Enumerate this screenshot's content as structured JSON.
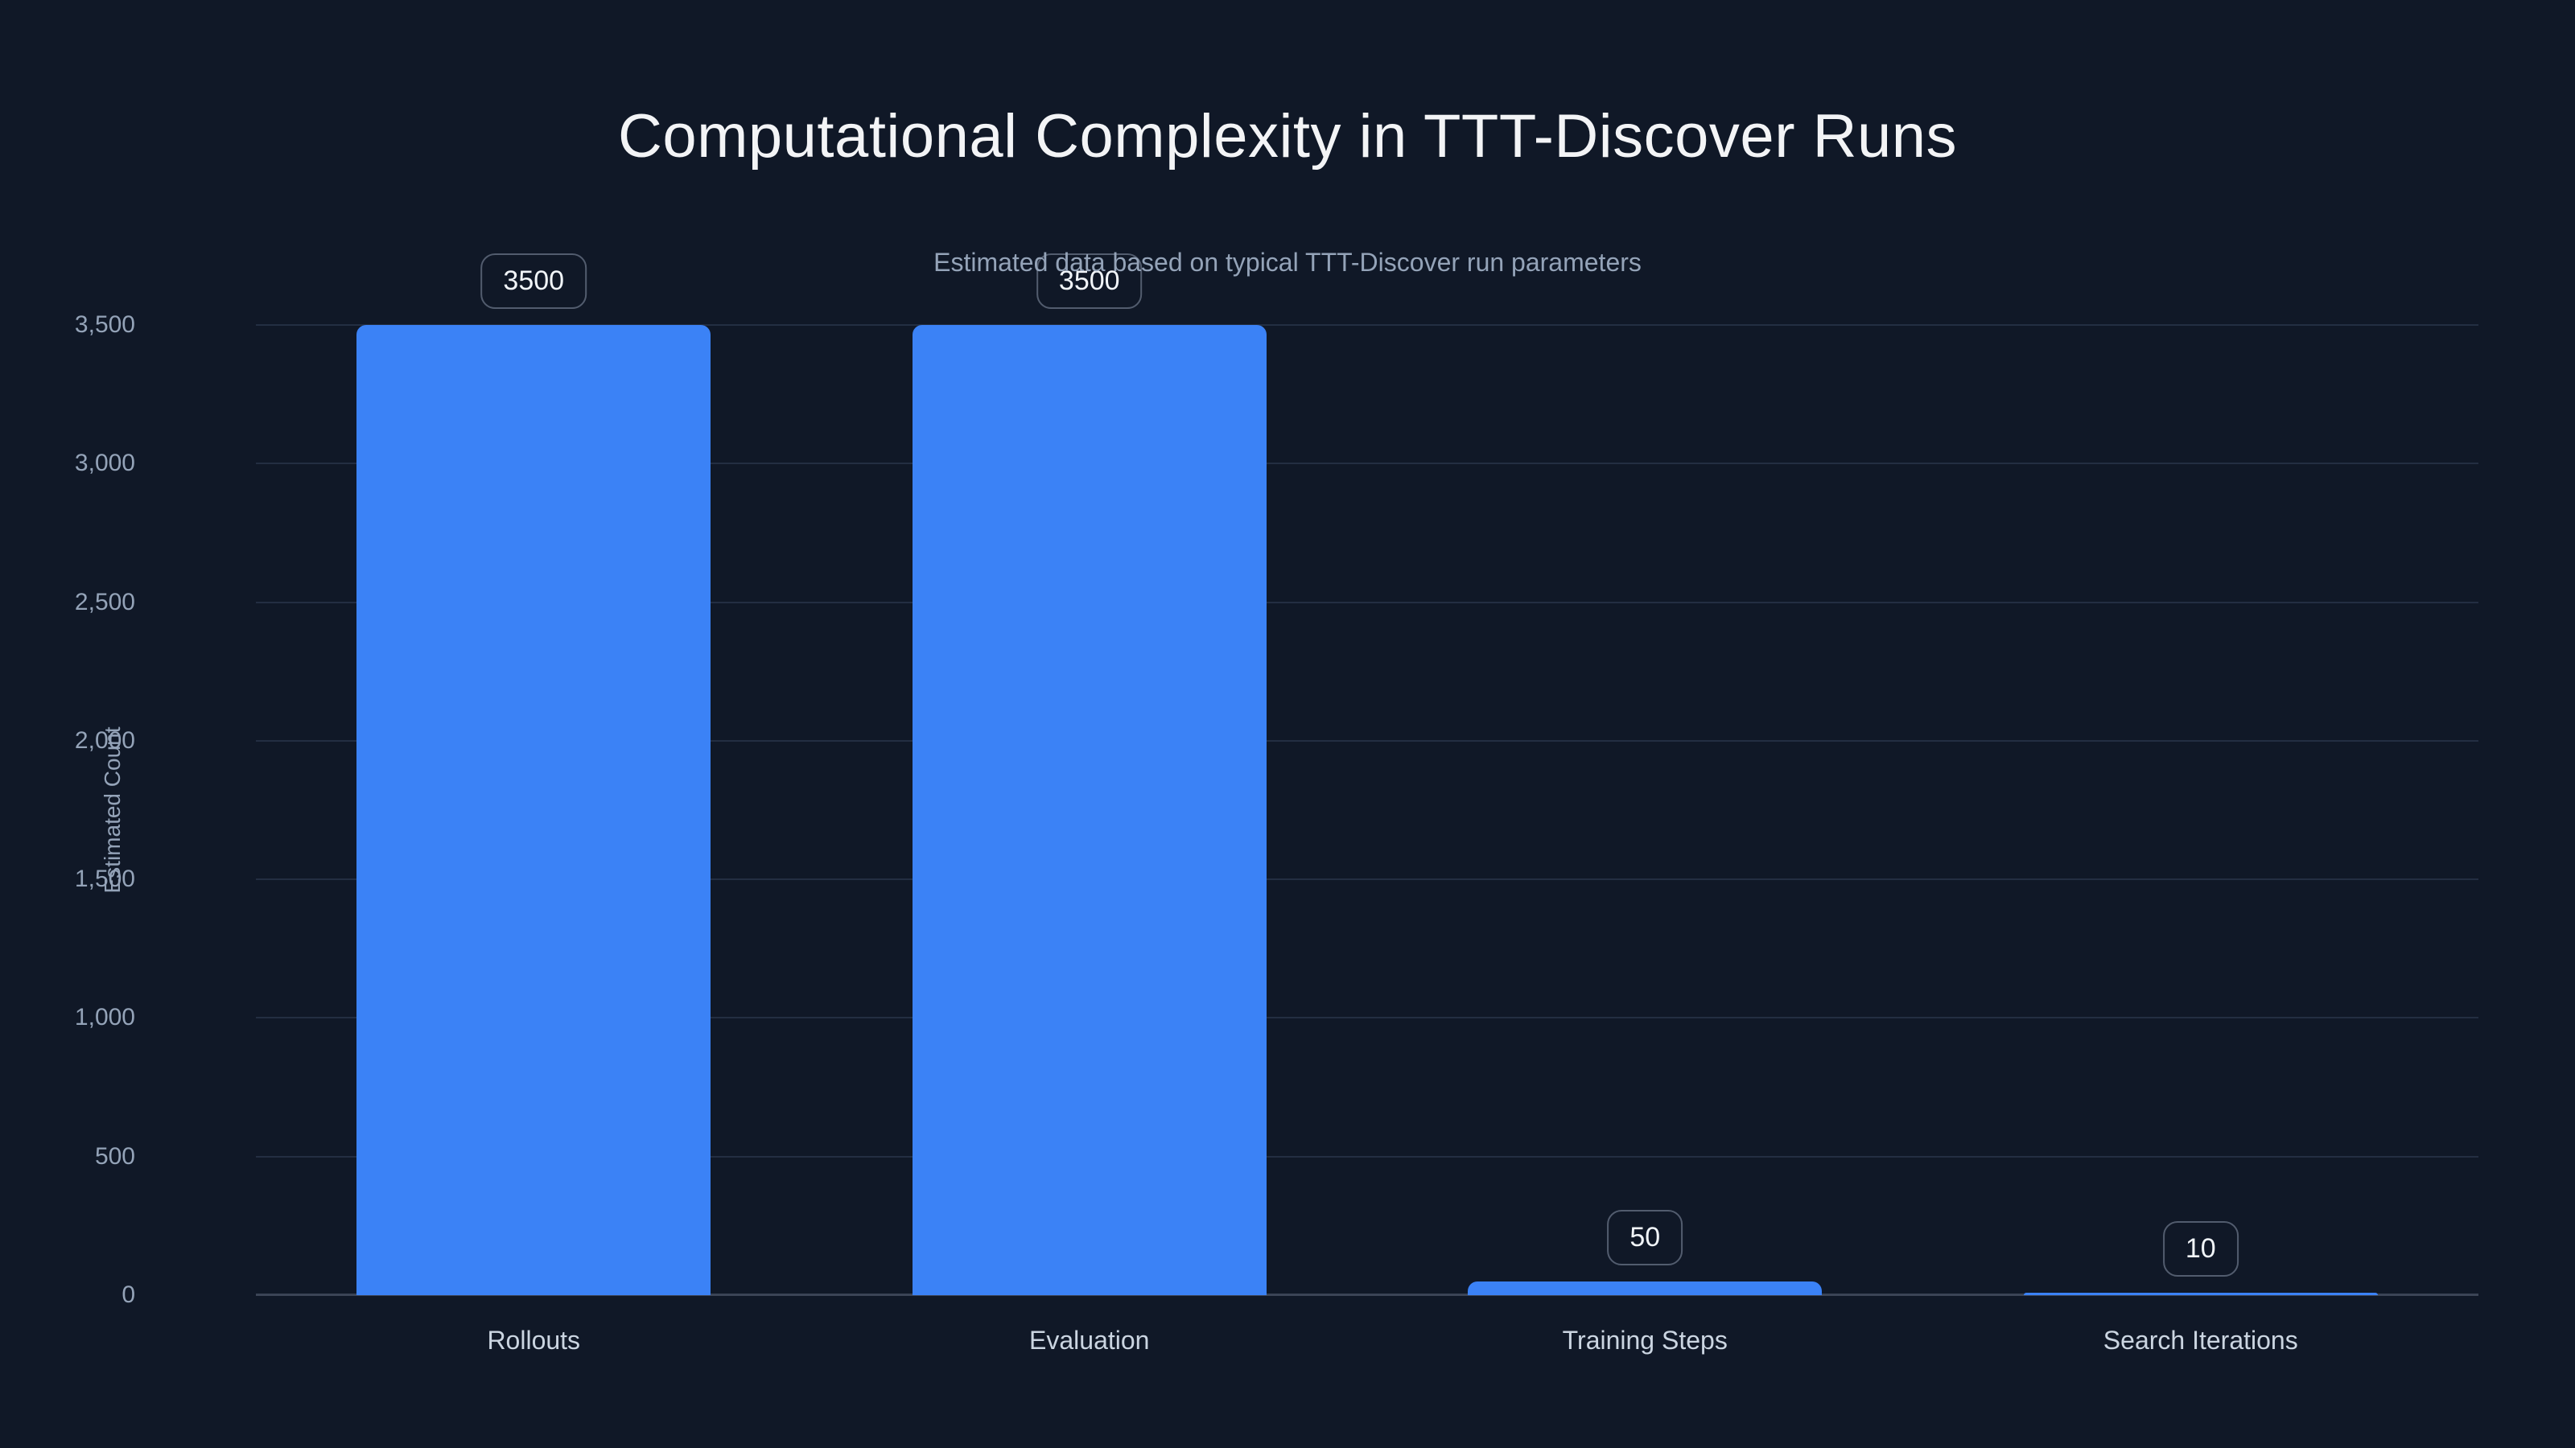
{
  "chart_data": {
    "type": "bar",
    "title": "Computational Complexity in TTT-Discover Runs",
    "subtitle": "Estimated data based on typical TTT-Discover run parameters",
    "xlabel": "",
    "ylabel": "Estimated Count",
    "categories": [
      "Rollouts",
      "Evaluation",
      "Training Steps",
      "Search Iterations"
    ],
    "values": [
      3500,
      3500,
      50,
      10
    ],
    "value_labels": [
      "3500",
      "3500",
      "50",
      "10"
    ],
    "ylim": [
      0,
      3500
    ],
    "yticks": [
      0,
      500,
      1000,
      1500,
      2000,
      2500,
      3000,
      3500
    ],
    "ytick_labels": [
      "0",
      "500",
      "1,000",
      "1,500",
      "2,000",
      "2,500",
      "3,000",
      "3,500"
    ],
    "grid": true,
    "legend": false,
    "bar_color": "#3b82f6"
  },
  "colors": {
    "background": "#101827",
    "title": "#f3f4f6",
    "subtitle": "#94a3b8",
    "tick": "#94a3b8",
    "category": "#cbd5e1",
    "gridline": "#232e42",
    "baseline": "#3b4456",
    "bar": "#3b82f6",
    "badge_border": "#525c6e",
    "badge_text": "#f1f5f9"
  }
}
